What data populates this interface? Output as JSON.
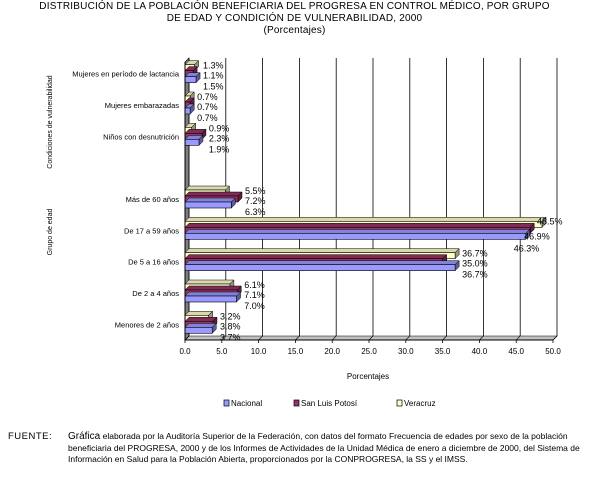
{
  "title": {
    "line1": "DISTRIBUCIÓN DE LA POBLACIÓN BENEFICIARIA DEL PROGRESA EN CONTROL MÉDICO, POR GRUPO",
    "line2": "DE EDAD Y CONDICIÓN DE VULNERABILIDAD, 2000",
    "line3": "(Porcentajes)"
  },
  "chart_data": {
    "type": "bar",
    "orientation": "horizontal",
    "xlabel": "Porcentajes",
    "xlim": [
      0,
      50
    ],
    "xticks": [
      "0.0",
      "5.0",
      "10.0",
      "15.0",
      "20.0",
      "25.0",
      "30.0",
      "35.0",
      "40.0",
      "45.0",
      "50.0"
    ],
    "grid": "vertical",
    "legend_position": "bottom",
    "group_labels": [
      "Condiciones de vulnerabilidad",
      "Grupo de edad"
    ],
    "categories": [
      "Mujeres en período de lactancia",
      "Mujeres embarazadas",
      "Niños con desnutrición",
      "",
      "Más de 60 años",
      "De 17 a 59 años",
      "De 5 a 16 años",
      "De 2 a 4 años",
      "Menores de 2 años"
    ],
    "series": [
      {
        "name": "Nacional",
        "color": "#9999ff",
        "values": [
          1.5,
          0.7,
          1.9,
          null,
          6.3,
          46.3,
          36.7,
          7.0,
          3.7
        ],
        "labels": [
          "1.5%",
          "0.7%",
          "1.9%",
          "",
          "6.3%",
          "46.3%",
          "36.7%",
          "7.0%",
          "3.7%"
        ]
      },
      {
        "name": "San Luis Potosí",
        "color": "#993366",
        "values": [
          1.1,
          0.7,
          2.3,
          null,
          7.2,
          46.9,
          35.0,
          7.1,
          3.8
        ],
        "labels": [
          "1.1%",
          "0.7%",
          "2.3%",
          "",
          "7.2%",
          "46.9%",
          "35.0%",
          "7.1%",
          "3.8%"
        ]
      },
      {
        "name": "Veracruz",
        "color": "#ffffcc",
        "values": [
          1.3,
          0.7,
          0.9,
          null,
          5.5,
          48.5,
          36.7,
          6.1,
          3.2
        ],
        "labels": [
          "1.3%",
          "0.7%",
          "0.9%",
          "",
          "5.5%",
          "48.5%",
          "36.7%",
          "6.1%",
          "3.2%"
        ]
      }
    ]
  },
  "source": {
    "label": "FUENTE:",
    "lead": "Gráfica",
    "text": " elaborada por la Auditoría Superior de la Federación, con datos del formato Frecuencia de edades por sexo de la población beneficiaria del PROGRESA, 2000 y de los Informes de Actividades de la Unidad Médica de enero a diciembre de 2000, del Sistema de Información en Salud para la Población Abierta, proporcionados por la CONPROGRESA, la SS y el IMSS."
  }
}
